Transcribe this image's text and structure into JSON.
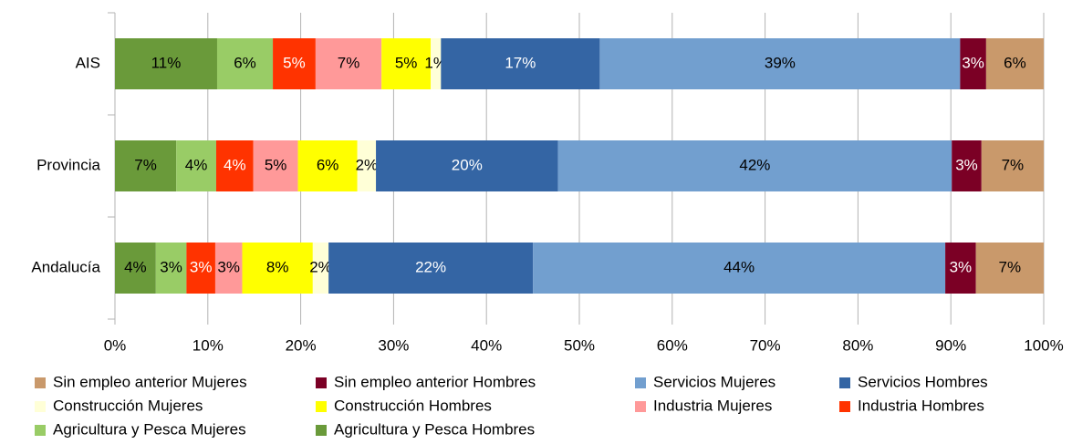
{
  "chart_data": {
    "type": "stacked_barh",
    "categories": [
      "AIS",
      "Provincia",
      "Andalucía"
    ],
    "series": [
      {
        "name": "Agricultura y Pesca Hombres",
        "color": "#6a9a3a",
        "values": [
          11,
          6.6,
          4.4
        ],
        "value_labels": [
          "11%",
          "7%",
          "4%"
        ]
      },
      {
        "name": "Agricultura y Pesca Mujeres",
        "color": "#99cc66",
        "values": [
          6,
          4.3,
          3.3
        ],
        "value_labels": [
          "6%",
          "4%",
          "3%"
        ]
      },
      {
        "name": "Industria Hombres",
        "color": "#ff3300",
        "values": [
          4.6,
          4,
          3.1
        ],
        "value_labels": [
          "5%",
          "4%",
          "3%"
        ]
      },
      {
        "name": "Industria Mujeres",
        "color": "#ff9999",
        "values": [
          7.1,
          4.8,
          2.9
        ],
        "value_labels": [
          "7%",
          "5%",
          "3%"
        ]
      },
      {
        "name": "Construcción Hombres",
        "color": "#ffff00",
        "values": [
          5.3,
          6.4,
          7.6
        ],
        "value_labels": [
          "5%",
          "6%",
          "8%"
        ]
      },
      {
        "name": "Construcción Mujeres",
        "color": "#ffffd7",
        "values": [
          1.1,
          2,
          1.7
        ],
        "value_labels": [
          "1%",
          "2%",
          "2%"
        ]
      },
      {
        "name": "Servicios Hombres",
        "color": "#3465a4",
        "values": [
          17.1,
          19.6,
          22
        ],
        "value_labels": [
          "17%",
          "20%",
          "22%"
        ]
      },
      {
        "name": "Servicios Mujeres",
        "color": "#729fcf",
        "values": [
          38.8,
          42.4,
          44.4
        ],
        "value_labels": [
          "39%",
          "42%",
          "44%"
        ]
      },
      {
        "name": "Sin empleo anterior Hombres",
        "color": "#7b0025",
        "values": [
          2.8,
          3.2,
          3.3
        ],
        "value_labels": [
          "3%",
          "3%",
          "3%"
        ]
      },
      {
        "name": "Sin empleo anterior Mujeres",
        "color": "#c9996b",
        "values": [
          6.2,
          6.7,
          7.3
        ],
        "value_labels": [
          "6%",
          "7%",
          "7%"
        ]
      }
    ],
    "xlim": [
      0,
      100
    ],
    "xticks": [
      {
        "value": 0,
        "label": "0%"
      },
      {
        "value": 10,
        "label": "10%"
      },
      {
        "value": 20,
        "label": "20%"
      },
      {
        "value": 30,
        "label": "30%"
      },
      {
        "value": 40,
        "label": "40%"
      },
      {
        "value": 50,
        "label": "50%"
      },
      {
        "value": 60,
        "label": "60%"
      },
      {
        "value": 70,
        "label": "70%"
      },
      {
        "value": 80,
        "label": "80%"
      },
      {
        "value": 90,
        "label": "90%"
      },
      {
        "value": 100,
        "label": "100%"
      }
    ],
    "grid": true,
    "legend": "bottom"
  }
}
